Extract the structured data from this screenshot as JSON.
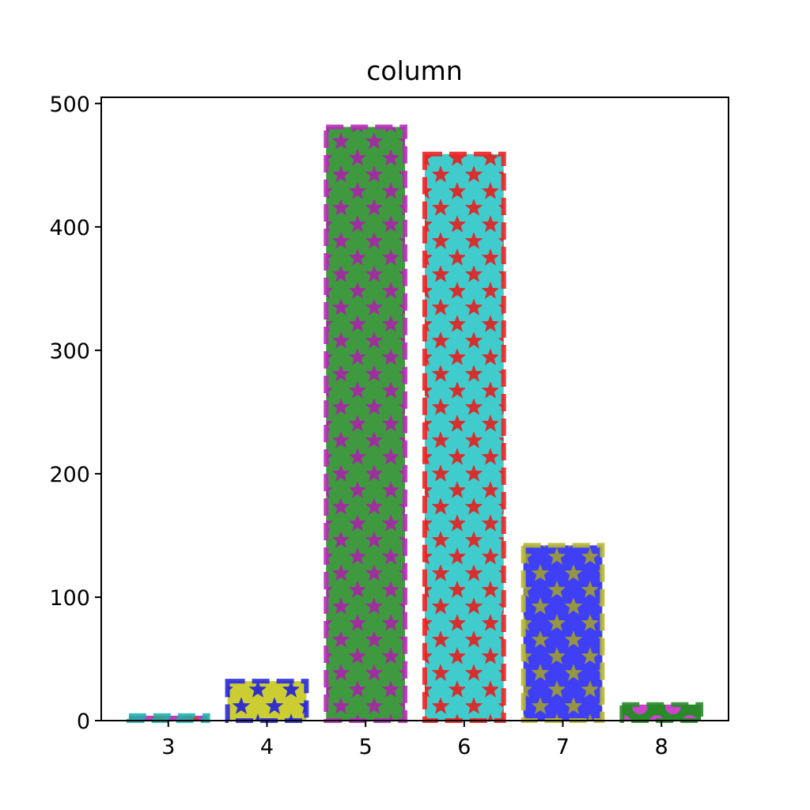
{
  "chart_data": {
    "type": "bar",
    "title": "column",
    "xlabel": "",
    "ylabel": "",
    "categories": [
      "3",
      "4",
      "5",
      "6",
      "7",
      "8"
    ],
    "values": [
      4,
      32,
      481,
      459,
      142,
      13
    ],
    "ylim": [
      0,
      505
    ],
    "yticks": [
      0,
      100,
      200,
      300,
      400,
      500
    ],
    "grid": false,
    "legend": "none",
    "bars": [
      {
        "fill": "#bf3fbf",
        "edge": "#20b2aa",
        "pattern": "circle",
        "pattern_color": "#e03030"
      },
      {
        "fill": "#cccc33",
        "edge": "#2929e0",
        "pattern": "star",
        "pattern_color": "#2929d0"
      },
      {
        "fill": "#3f9a3f",
        "edge": "#b82cb8",
        "pattern": "star",
        "pattern_color": "#a22aa2"
      },
      {
        "fill": "#40cccc",
        "edge": "#ee2222",
        "pattern": "star",
        "pattern_color": "#dd2828"
      },
      {
        "fill": "#3f3ff5",
        "edge": "#b8b832",
        "pattern": "star",
        "pattern_color": "#9a9a3a"
      },
      {
        "fill": "#2a8a2a",
        "edge": "#2a8a2a",
        "pattern": "circle",
        "pattern_color": "#cc44cc"
      }
    ]
  }
}
